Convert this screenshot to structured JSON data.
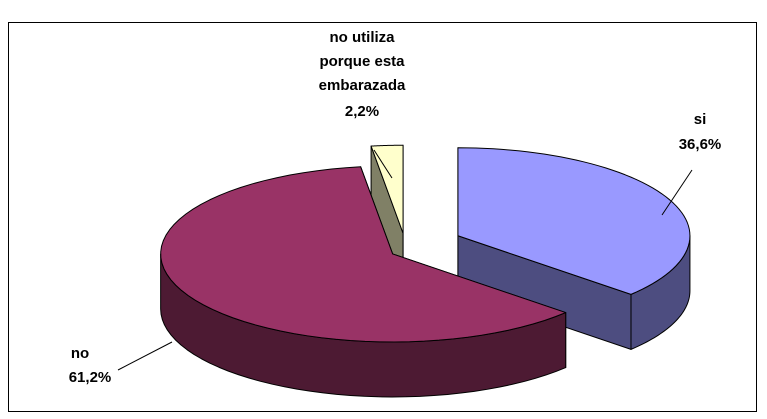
{
  "chart_data": {
    "type": "pie3d",
    "categories": [
      "si",
      "no",
      "no utiliza porque esta embarazada"
    ],
    "values": [
      36.6,
      61.2,
      2.2
    ],
    "value_labels": [
      "36,6%",
      "61,2%",
      "2,2%"
    ],
    "colors": [
      "#9999ff",
      "#993366",
      "#ffffcc"
    ]
  }
}
